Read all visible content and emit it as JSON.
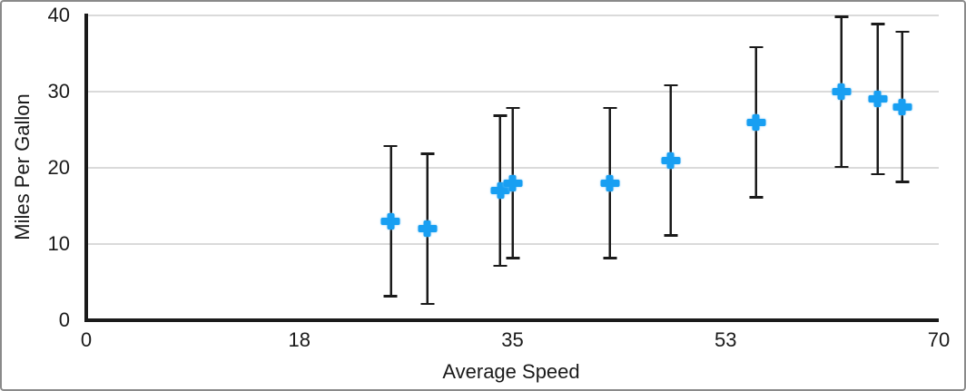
{
  "chart_data": {
    "type": "scatter",
    "title": "",
    "xlabel": "Average Speed",
    "ylabel": "Miles Per Gallon",
    "xlim": [
      0,
      70
    ],
    "ylim": [
      0,
      40
    ],
    "x_tick_labels": [
      "0",
      "18",
      "35",
      "53",
      "70"
    ],
    "y_tick_labels": [
      "0",
      "10",
      "20",
      "30",
      "40"
    ],
    "grid": "horizontal gridlines at y = 10, 20, 30, 40",
    "legend": "none",
    "points": [
      {
        "x": 25,
        "y": 13
      },
      {
        "x": 28,
        "y": 12
      },
      {
        "x": 34,
        "y": 17
      },
      {
        "x": 35,
        "y": 18
      },
      {
        "x": 43,
        "y": 18
      },
      {
        "x": 48,
        "y": 21
      },
      {
        "x": 55,
        "y": 26
      },
      {
        "x": 62,
        "y": 30
      },
      {
        "x": 65,
        "y": 29
      },
      {
        "x": 67,
        "y": 28
      }
    ],
    "error_bars": {
      "axis": "y",
      "plus": 10,
      "minus": 10
    },
    "marker": {
      "shape": "plus",
      "color": "#189FF2"
    },
    "colors": {
      "axis": "#1a1a1a",
      "gridline": "#dadada",
      "error_bar": "#1a1a1a",
      "text": "#1a1a1a",
      "background": "#ffffff",
      "frame_border": "#8a8a8a"
    }
  }
}
